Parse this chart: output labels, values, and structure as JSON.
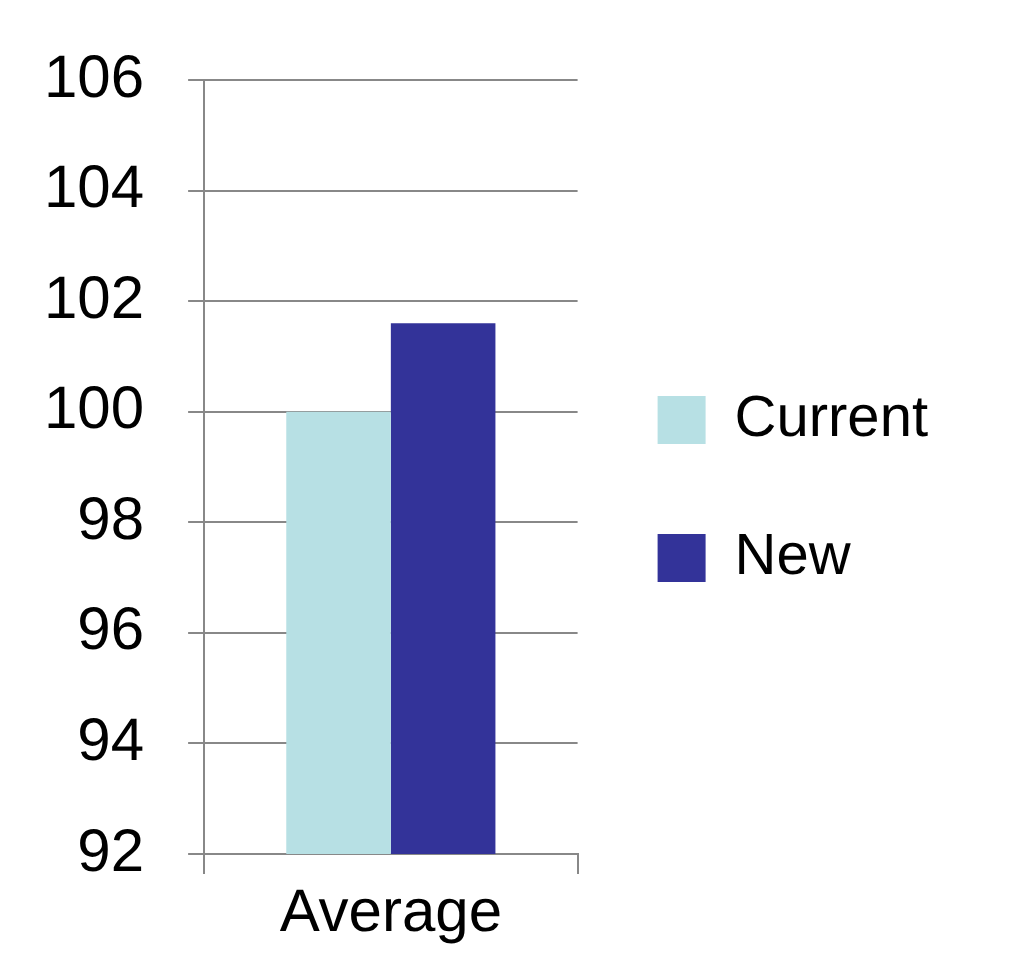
{
  "chart_data": {
    "type": "bar",
    "categories": [
      "Average"
    ],
    "series": [
      {
        "name": "Current",
        "color": "#b7e0e4",
        "values": [
          100
        ]
      },
      {
        "name": "New",
        "color": "#333399",
        "values": [
          101.6
        ]
      }
    ],
    "ylim": [
      92,
      106
    ],
    "yticks": [
      92,
      94,
      96,
      98,
      100,
      102,
      104,
      106
    ],
    "grid": "y",
    "legend": "right"
  }
}
